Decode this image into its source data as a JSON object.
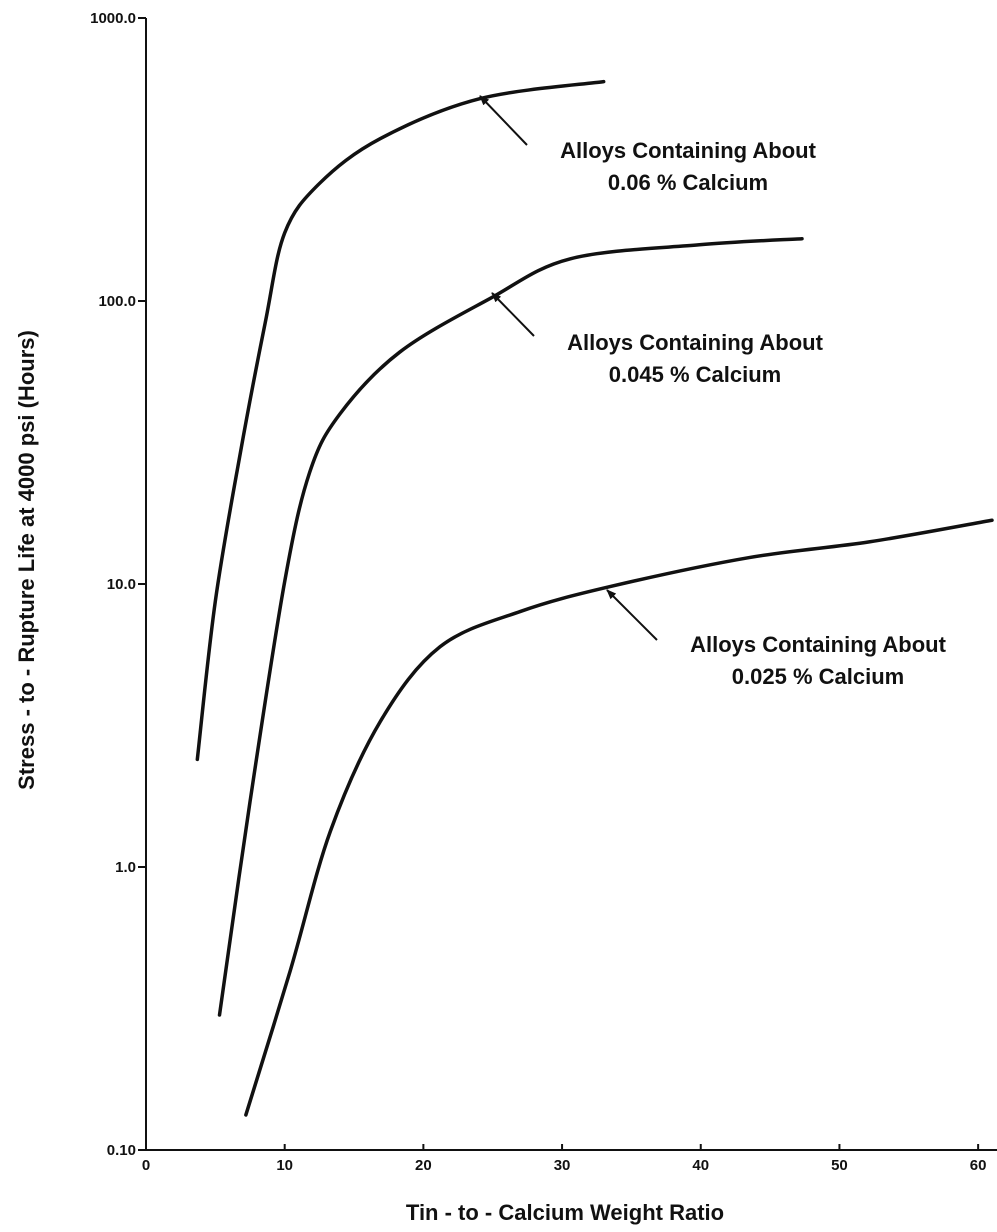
{
  "chart_data": {
    "type": "line",
    "yscale": "log",
    "xlabel": "Tin - to - Calcium Weight Ratio",
    "ylabel": "Stress - to - Rupture Life at 4000 psi (Hours)",
    "xlim": [
      0,
      61
    ],
    "ylim": [
      0.1,
      1000
    ],
    "xticks": [
      0,
      10,
      20,
      30,
      40,
      50,
      60
    ],
    "yticks": [
      {
        "value": 0.1,
        "label": "0.10"
      },
      {
        "value": 1,
        "label": "1.0"
      },
      {
        "value": 10,
        "label": "10.0"
      },
      {
        "value": 100,
        "label": "100.0"
      },
      {
        "value": 1000,
        "label": "1000.0"
      }
    ],
    "color": "#111111",
    "series": [
      {
        "x": [
          3.7,
          5.0,
          6.8,
          8.6,
          10,
          12.5,
          16.9,
          24.1,
          33
        ],
        "values": [
          2.4,
          8.7,
          29,
          84,
          174,
          260,
          375,
          519,
          596
        ]
      },
      {
        "x": [
          5.3,
          7.5,
          10,
          11.8,
          14,
          18.3,
          24.8,
          30.6,
          39.9,
          47.3
        ],
        "values": [
          0.3,
          1.7,
          10.2,
          24.8,
          40,
          66,
          102,
          141,
          158,
          166
        ]
      },
      {
        "x": [
          7.2,
          10.4,
          13.3,
          16.9,
          21.2,
          27,
          33.5,
          43.5,
          52.2,
          61
        ],
        "values": [
          0.133,
          0.43,
          1.34,
          3.27,
          6.0,
          8.0,
          9.8,
          12.4,
          14.1,
          16.8
        ]
      }
    ],
    "annotations": [
      {
        "text": [
          "Alloys Containing About",
          "0.06 % Calcium"
        ]
      },
      {
        "text": [
          "Alloys Containing About",
          "0.045 % Calcium"
        ]
      },
      {
        "text": [
          "Alloys Containing About",
          "0.025 % Calcium"
        ]
      }
    ]
  }
}
